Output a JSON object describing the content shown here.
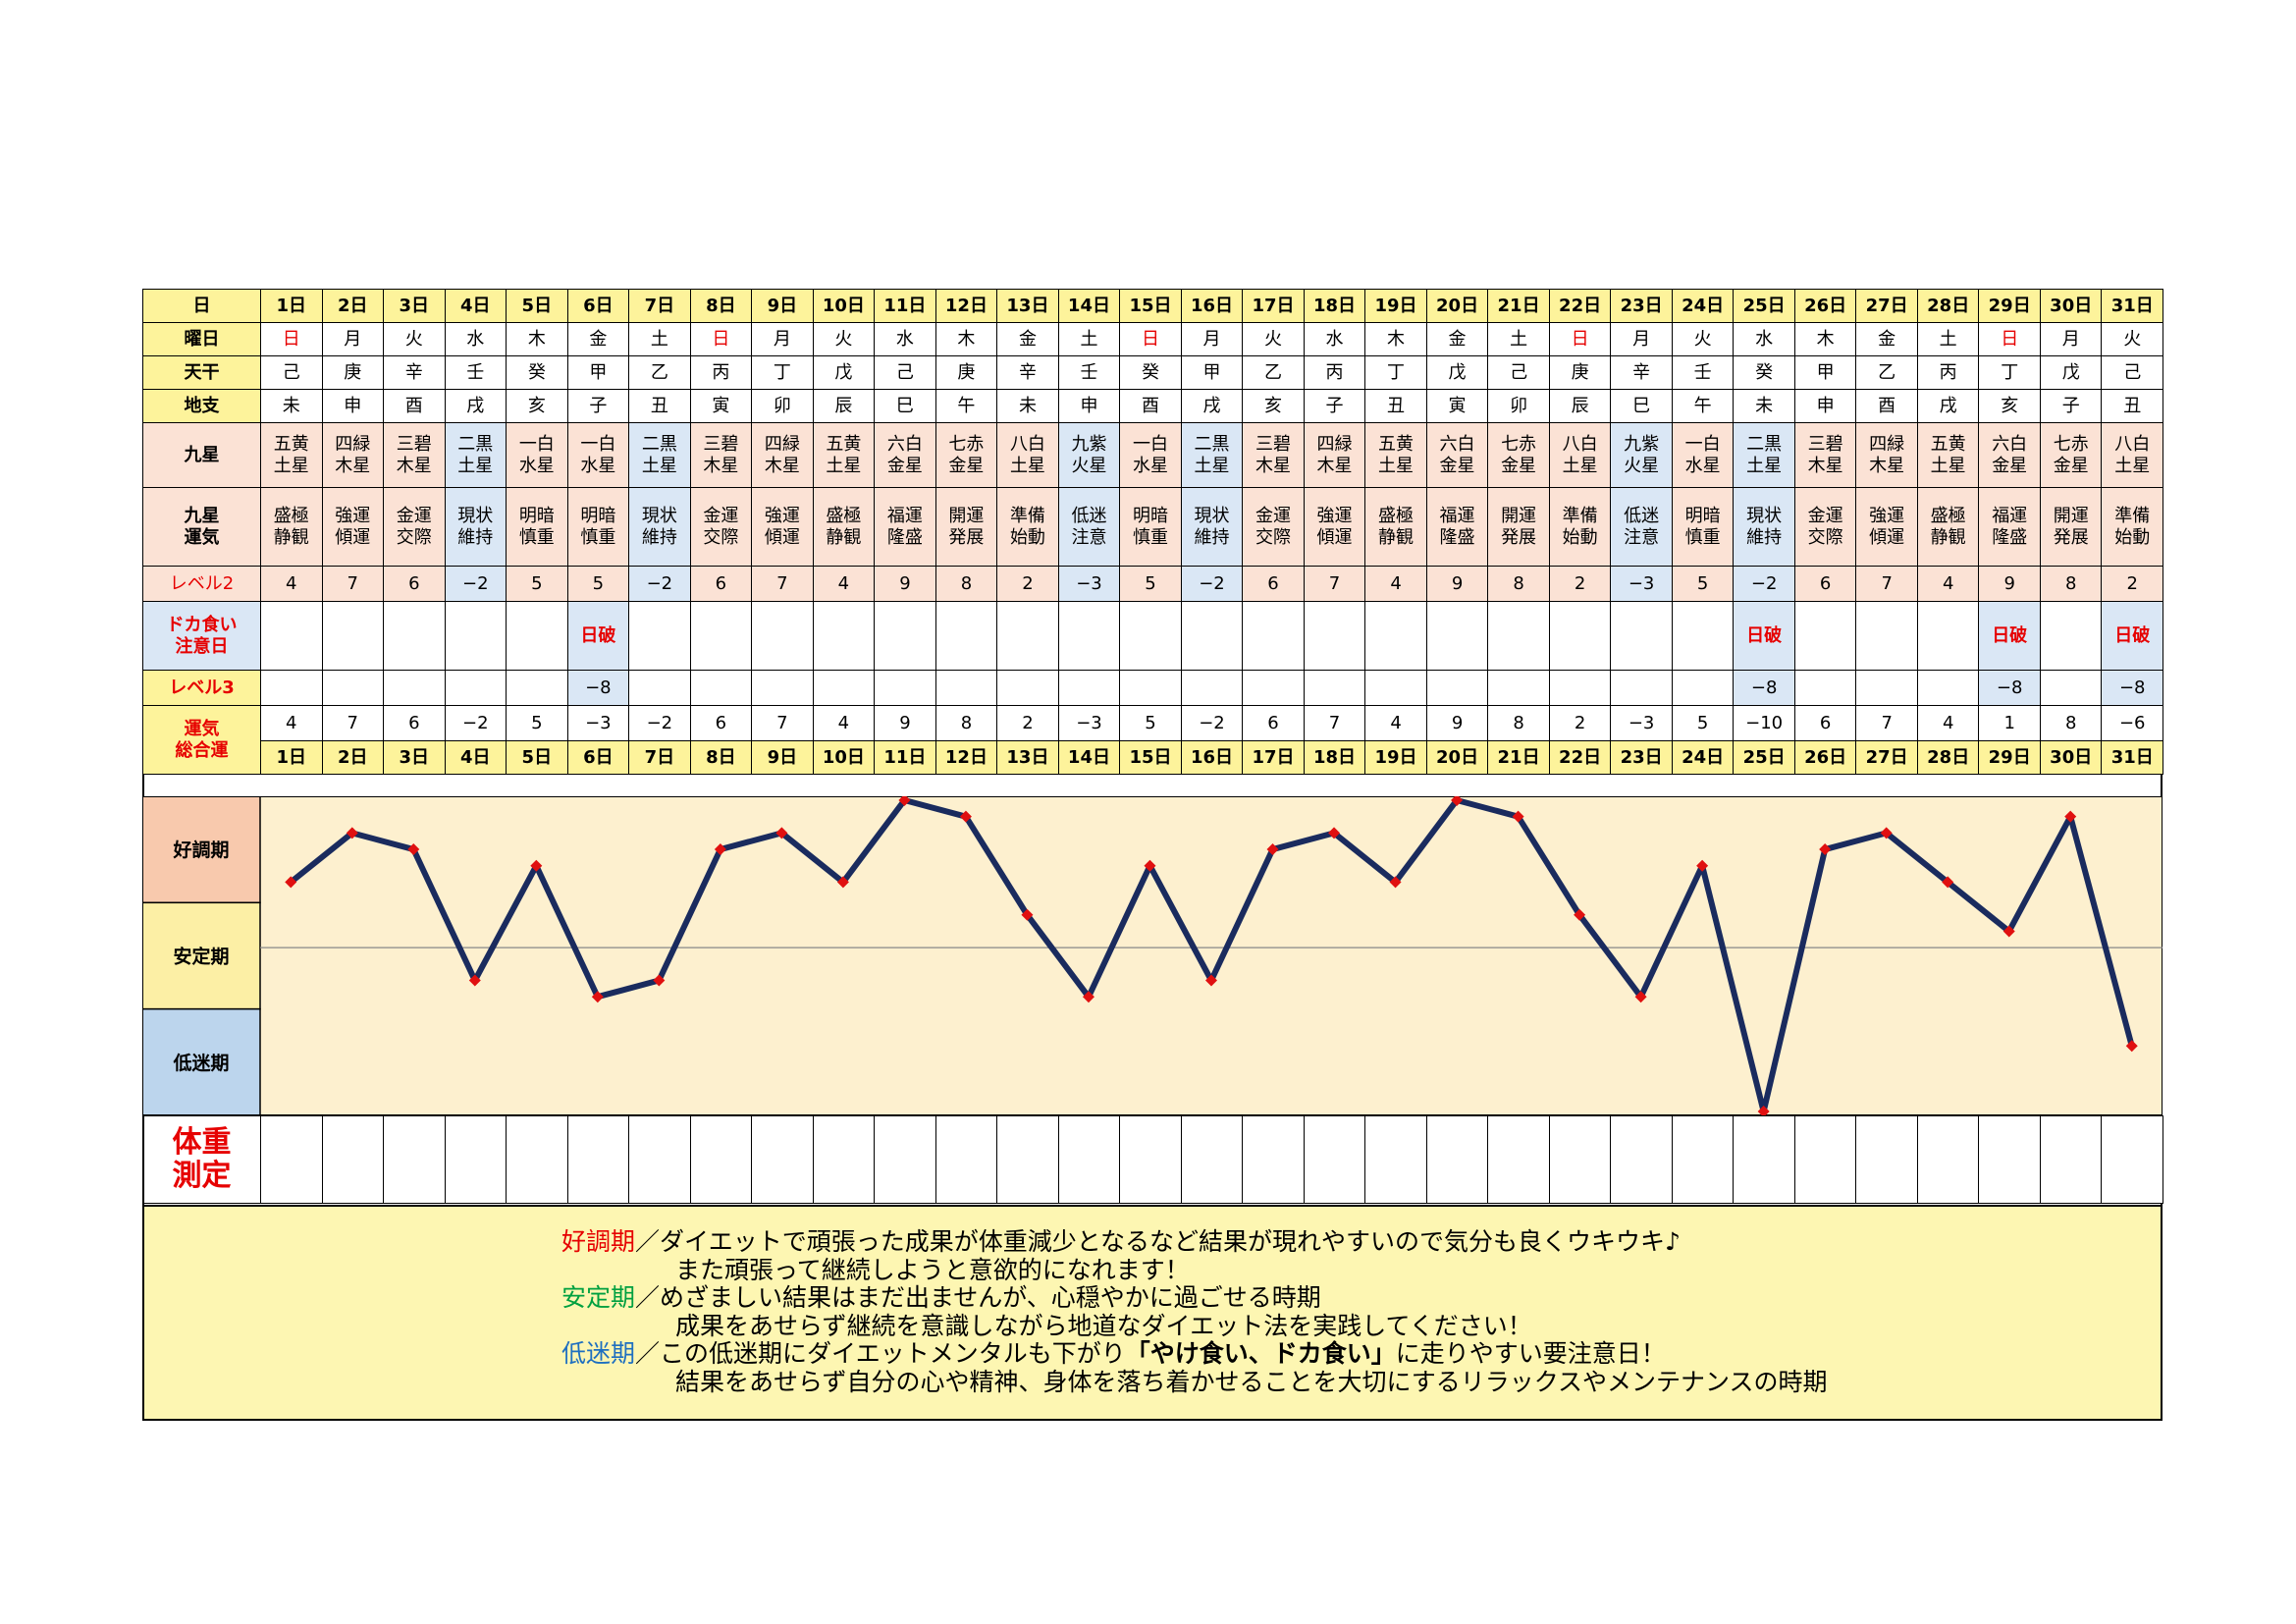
{
  "labels": {
    "day": "日",
    "weekday": "曜日",
    "stem": "天干",
    "branch": "地支",
    "star": "九星",
    "fortune": "九星\n運気",
    "level2": "レベル2",
    "binge": "ドカ食い\n注意日",
    "level3": "レベル3",
    "total": "運気\n総合運",
    "good": "好調期",
    "stable": "安定期",
    "low": "低迷期",
    "weigh": "体重\n測定"
  },
  "days": [
    "1日",
    "2日",
    "3日",
    "4日",
    "5日",
    "6日",
    "7日",
    "8日",
    "9日",
    "10日",
    "11日",
    "12日",
    "13日",
    "14日",
    "15日",
    "16日",
    "17日",
    "18日",
    "19日",
    "20日",
    "21日",
    "22日",
    "23日",
    "24日",
    "25日",
    "26日",
    "27日",
    "28日",
    "29日",
    "30日",
    "31日"
  ],
  "weekdays": [
    "日",
    "月",
    "火",
    "水",
    "木",
    "金",
    "土",
    "日",
    "月",
    "火",
    "水",
    "木",
    "金",
    "土",
    "日",
    "月",
    "火",
    "水",
    "木",
    "金",
    "土",
    "日",
    "月",
    "火",
    "水",
    "木",
    "金",
    "土",
    "日",
    "月",
    "火"
  ],
  "stems": [
    "己",
    "庚",
    "辛",
    "壬",
    "癸",
    "甲",
    "乙",
    "丙",
    "丁",
    "戊",
    "己",
    "庚",
    "辛",
    "壬",
    "癸",
    "甲",
    "乙",
    "丙",
    "丁",
    "戊",
    "己",
    "庚",
    "辛",
    "壬",
    "癸",
    "甲",
    "乙",
    "丙",
    "丁",
    "戊",
    "己"
  ],
  "branches": [
    "未",
    "申",
    "酉",
    "戌",
    "亥",
    "子",
    "丑",
    "寅",
    "卯",
    "辰",
    "巳",
    "午",
    "未",
    "申",
    "酉",
    "戌",
    "亥",
    "子",
    "丑",
    "寅",
    "卯",
    "辰",
    "巳",
    "午",
    "未",
    "申",
    "酉",
    "戌",
    "亥",
    "子",
    "丑"
  ],
  "stars": [
    "五黄\n土星",
    "四緑\n木星",
    "三碧\n木星",
    "二黒\n土星",
    "一白\n水星",
    "一白\n水星",
    "二黒\n土星",
    "三碧\n木星",
    "四緑\n木星",
    "五黄\n土星",
    "六白\n金星",
    "七赤\n金星",
    "八白\n土星",
    "九紫\n火星",
    "一白\n水星",
    "二黒\n土星",
    "三碧\n木星",
    "四緑\n木星",
    "五黄\n土星",
    "六白\n金星",
    "七赤\n金星",
    "八白\n土星",
    "九紫\n火星",
    "一白\n水星",
    "二黒\n土星",
    "三碧\n木星",
    "四緑\n木星",
    "五黄\n土星",
    "六白\n金星",
    "七赤\n金星",
    "八白\n土星"
  ],
  "fortunes": [
    "盛極\n静観",
    "強運\n傾運",
    "金運\n交際",
    "現状\n維持",
    "明暗\n慎重",
    "明暗\n慎重",
    "現状\n維持",
    "金運\n交際",
    "強運\n傾運",
    "盛極\n静観",
    "福運\n隆盛",
    "開運\n発展",
    "準備\n始動",
    "低迷\n注意",
    "明暗\n慎重",
    "現状\n維持",
    "金運\n交際",
    "強運\n傾運",
    "盛極\n静観",
    "福運\n隆盛",
    "開運\n発展",
    "準備\n始動",
    "低迷\n注意",
    "明暗\n慎重",
    "現状\n維持",
    "金運\n交際",
    "強運\n傾運",
    "盛極\n静観",
    "福運\n隆盛",
    "開運\n発展",
    "準備\n始動"
  ],
  "level2": [
    "4",
    "7",
    "6",
    "−2",
    "5",
    "5",
    "−2",
    "6",
    "7",
    "4",
    "9",
    "8",
    "2",
    "−3",
    "5",
    "−2",
    "6",
    "7",
    "4",
    "9",
    "8",
    "2",
    "−3",
    "5",
    "−2",
    "6",
    "7",
    "4",
    "9",
    "8",
    "2"
  ],
  "binge": [
    "",
    "",
    "",
    "",
    "",
    "日破",
    "",
    "",
    "",
    "",
    "",
    "",
    "",
    "",
    "",
    "",
    "",
    "",
    "",
    "",
    "",
    "",
    "",
    "",
    "日破",
    "",
    "",
    "",
    "日破",
    "",
    "日破"
  ],
  "level3": [
    "",
    "",
    "",
    "",
    "",
    "−8",
    "",
    "",
    "",
    "",
    "",
    "",
    "",
    "",
    "",
    "",
    "",
    "",
    "",
    "",
    "",
    "",
    "",
    "",
    "−8",
    "",
    "",
    "",
    "−8",
    "",
    "−8"
  ],
  "total_text": [
    "4",
    "7",
    "6",
    "−2",
    "5",
    "−3",
    "−2",
    "6",
    "7",
    "4",
    "9",
    "8",
    "2",
    "−3",
    "5",
    "−2",
    "6",
    "7",
    "4",
    "9",
    "8",
    "2",
    "−3",
    "5",
    "−10",
    "6",
    "7",
    "4",
    "1",
    "8",
    "−6"
  ],
  "notes": [
    {
      "head": "好調期",
      "headColor": "#e60000",
      "text": "／ダイエットで頑張った成果が体重減少となるなど結果が現れやすいので気分も良くウキウキ♪"
    },
    {
      "head": "",
      "headColor": "",
      "text": "また頑張って継続しようと意欲的になれます！"
    },
    {
      "head": "安定期",
      "headColor": "#00a040",
      "text": "／めざましい結果はまだ出ませんが、心穏やかに過ごせる時期"
    },
    {
      "head": "",
      "headColor": "",
      "text": "成果をあせらず継続を意識しながら地道なダイエット法を実践してください！"
    },
    {
      "head": "低迷期",
      "headColor": "#1e6fc0",
      "text": "／この低迷期にダイエットメンタルも下がり",
      "bold": "「やけ食い、ドカ食い」",
      "tail": "に走りやすい要注意日！"
    },
    {
      "head": "",
      "headColor": "",
      "text": "結果をあせらず自分の心や精神、身体を落ち着かせることを大切にするリラックスやメンテナンスの時期"
    }
  ],
  "chart_data": {
    "type": "line",
    "x": [
      "1日",
      "2日",
      "3日",
      "4日",
      "5日",
      "6日",
      "7日",
      "8日",
      "9日",
      "10日",
      "11日",
      "12日",
      "13日",
      "14日",
      "15日",
      "16日",
      "17日",
      "18日",
      "19日",
      "20日",
      "21日",
      "22日",
      "23日",
      "24日",
      "25日",
      "26日",
      "27日",
      "28日",
      "29日",
      "30日",
      "31日"
    ],
    "values": [
      4,
      7,
      6,
      -2,
      5,
      -3,
      -2,
      6,
      7,
      4,
      9,
      8,
      2,
      -3,
      5,
      -2,
      6,
      7,
      4,
      9,
      8,
      2,
      -3,
      5,
      -10,
      6,
      7,
      4,
      1,
      8,
      -6
    ],
    "ylim": [
      -10,
      9
    ],
    "bands": [
      "好調期",
      "安定期",
      "低迷期"
    ],
    "line_color": "#1a2b5e",
    "marker_color": "#e01010",
    "bg_color": "#fdf0cf",
    "reference_line": 0
  }
}
